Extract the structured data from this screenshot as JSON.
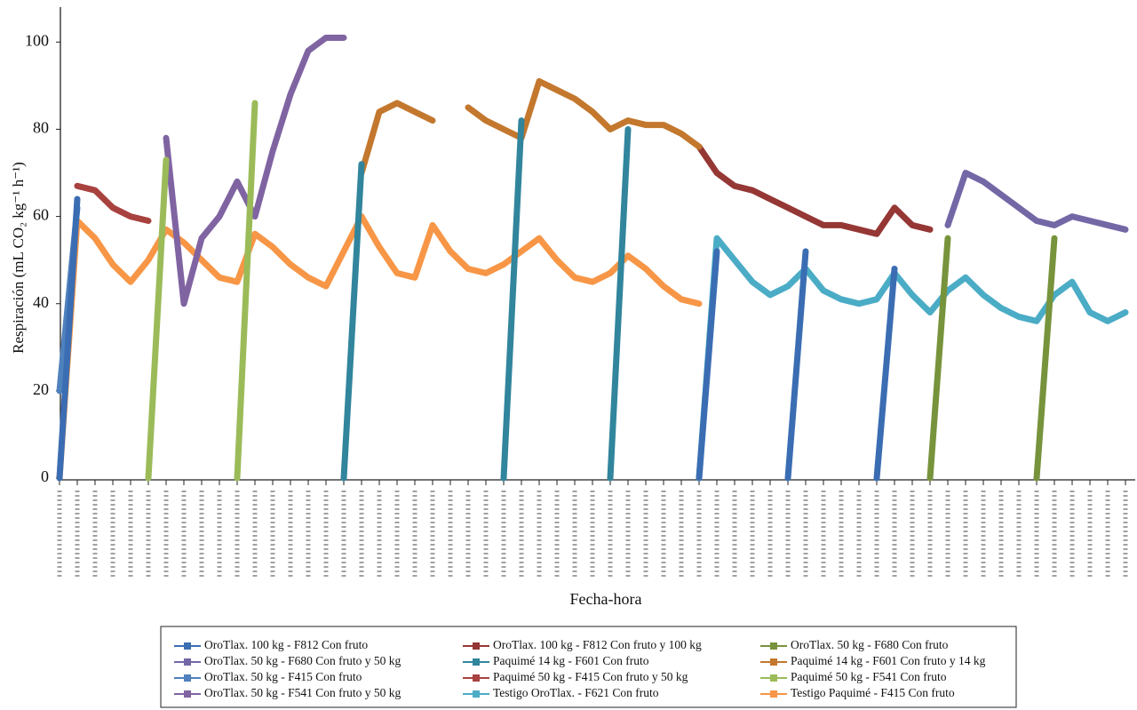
{
  "chart_data": {
    "type": "line",
    "xlabel": "Fecha-hora",
    "ylabel": "Respiración (mL CO₂ kg⁻¹ h⁻¹)",
    "categories": [
      null,
      null,
      null,
      null,
      null,
      null,
      null,
      null,
      null,
      null,
      null,
      null,
      null,
      null,
      null,
      null,
      null,
      null,
      null,
      null,
      null,
      null,
      null,
      null,
      null,
      null,
      null,
      null,
      null,
      null,
      null,
      null,
      null,
      null,
      null,
      null,
      null,
      null,
      null,
      null,
      null,
      null,
      null,
      null,
      null,
      null,
      null,
      null,
      null,
      null,
      null,
      null,
      null,
      null,
      null,
      null,
      null,
      null,
      null,
      null,
      null
    ],
    "ylim": [
      0,
      107
    ],
    "yticks": [
      0,
      20,
      40,
      60,
      80,
      100
    ],
    "series": [
      {
        "name": "OroTlax. 100 kg - F812 Con fruto",
        "color": "#3b6db3",
        "values": [
          0,
          64,
          null,
          null,
          null,
          null,
          null,
          null,
          null,
          null,
          null,
          null,
          null,
          null,
          null,
          null,
          null,
          null,
          null,
          null,
          null,
          null,
          null,
          null,
          null,
          null,
          null,
          null,
          null,
          null,
          null,
          null,
          null,
          null,
          null,
          null,
          0,
          52,
          null,
          null,
          null,
          0,
          52,
          null,
          null,
          null,
          0,
          48,
          null,
          null,
          null,
          null,
          null,
          null,
          null,
          null,
          null,
          null,
          null,
          null,
          null
        ]
      },
      {
        "name": "OroTlax. 100 kg - F812 Con fruto y 100 kg",
        "color": "#953735",
        "values": [
          null,
          null,
          null,
          null,
          null,
          null,
          null,
          null,
          null,
          null,
          null,
          null,
          null,
          null,
          null,
          null,
          null,
          null,
          null,
          null,
          null,
          null,
          null,
          null,
          null,
          null,
          null,
          null,
          null,
          null,
          null,
          null,
          null,
          null,
          null,
          null,
          76,
          70,
          67,
          66,
          64,
          62,
          60,
          58,
          58,
          57,
          56,
          62,
          58,
          57,
          null,
          null,
          null,
          null,
          null,
          null,
          null,
          null,
          null,
          null,
          null
        ]
      },
      {
        "name": "OroTlax. 50 kg - F680 Con fruto",
        "color": "#77933c",
        "values": [
          null,
          null,
          null,
          null,
          null,
          null,
          null,
          null,
          null,
          null,
          null,
          null,
          null,
          null,
          null,
          null,
          null,
          null,
          null,
          null,
          null,
          null,
          null,
          null,
          null,
          null,
          null,
          null,
          null,
          null,
          null,
          null,
          null,
          null,
          null,
          null,
          null,
          null,
          null,
          null,
          null,
          null,
          null,
          null,
          null,
          null,
          null,
          null,
          null,
          0,
          55,
          null,
          null,
          null,
          null,
          0,
          55,
          null,
          null,
          null,
          null
        ]
      },
      {
        "name": "OroTlax. 50 kg - F680 Con fruto y 50 kg",
        "color": "#7467a6",
        "values": [
          null,
          null,
          null,
          null,
          null,
          null,
          null,
          null,
          null,
          null,
          null,
          null,
          null,
          null,
          null,
          null,
          null,
          null,
          null,
          null,
          null,
          null,
          null,
          null,
          null,
          null,
          null,
          null,
          null,
          null,
          null,
          null,
          null,
          null,
          null,
          null,
          null,
          null,
          null,
          null,
          null,
          null,
          null,
          null,
          null,
          null,
          null,
          null,
          null,
          null,
          58,
          70,
          68,
          65,
          62,
          59,
          58,
          60,
          59,
          58,
          57
        ]
      },
      {
        "name": "Paquimé 14 kg - F601 Con fruto",
        "color": "#31859c",
        "values": [
          null,
          null,
          null,
          null,
          null,
          null,
          null,
          null,
          null,
          null,
          null,
          null,
          null,
          null,
          null,
          null,
          0,
          72,
          null,
          null,
          null,
          null,
          null,
          null,
          null,
          0,
          82,
          null,
          null,
          null,
          null,
          0,
          80,
          null,
          null,
          null,
          null,
          null,
          null,
          null,
          null,
          null,
          null,
          null,
          null,
          null,
          null,
          null,
          null,
          null,
          null,
          null,
          null,
          null,
          null,
          null,
          null,
          null,
          null,
          null,
          null
        ]
      },
      {
        "name": "Paquimé 14 kg - F601 Con fruto y 14 kg",
        "color": "#c3782e",
        "values": [
          null,
          null,
          null,
          null,
          null,
          null,
          null,
          null,
          null,
          null,
          null,
          null,
          null,
          null,
          null,
          null,
          null,
          70,
          84,
          86,
          84,
          82,
          null,
          85,
          82,
          80,
          78,
          91,
          89,
          87,
          84,
          80,
          82,
          81,
          81,
          79,
          76,
          null,
          null,
          null,
          null,
          null,
          null,
          null,
          null,
          null,
          null,
          null,
          null,
          null,
          null,
          null,
          null,
          null,
          null,
          null,
          null,
          null,
          null,
          null,
          null
        ]
      },
      {
        "name": "OroTlax. 50 kg - F415 Con fruto",
        "color": "#4f81bd",
        "values": [
          20,
          62,
          null,
          null,
          null,
          null,
          null,
          null,
          null,
          null,
          null,
          null,
          null,
          null,
          null,
          null,
          null,
          null,
          null,
          null,
          null,
          null,
          null,
          null,
          null,
          null,
          null,
          null,
          null,
          null,
          null,
          null,
          null,
          null,
          null,
          null,
          null,
          null,
          null,
          null,
          null,
          null,
          null,
          null,
          null,
          null,
          null,
          null,
          null,
          null,
          null,
          null,
          null,
          null,
          null,
          null,
          null,
          null,
          null,
          null,
          null
        ]
      },
      {
        "name": "Paquimé 50 kg - F415 Con fruto y 50 kg",
        "color": "#a8423f",
        "values": [
          null,
          67,
          66,
          62,
          60,
          59,
          null,
          null,
          null,
          null,
          null,
          null,
          null,
          null,
          null,
          null,
          null,
          null,
          null,
          null,
          null,
          null,
          null,
          null,
          null,
          null,
          null,
          null,
          null,
          null,
          null,
          null,
          null,
          null,
          null,
          null,
          null,
          null,
          null,
          null,
          null,
          null,
          null,
          null,
          null,
          null,
          null,
          null,
          null,
          null,
          null,
          null,
          null,
          null,
          null,
          null,
          null,
          null,
          null,
          null,
          null
        ]
      },
      {
        "name": "Paquimé 50 kg - F541 Con fruto",
        "color": "#9bbb59",
        "values": [
          null,
          null,
          null,
          null,
          null,
          0,
          73,
          null,
          null,
          null,
          0,
          86,
          null,
          null,
          null,
          null,
          null,
          null,
          null,
          null,
          null,
          null,
          null,
          null,
          null,
          null,
          null,
          null,
          null,
          null,
          null,
          null,
          null,
          null,
          null,
          null,
          null,
          null,
          null,
          null,
          null,
          null,
          null,
          null,
          null,
          null,
          null,
          null,
          null,
          null,
          null,
          null,
          null,
          null,
          null,
          null,
          null,
          null,
          null,
          null,
          null
        ]
      },
      {
        "name": "OroTlax. 50 kg - F541 Con fruto y 50 kg",
        "color": "#8064a2",
        "values": [
          null,
          null,
          null,
          null,
          null,
          null,
          78,
          40,
          55,
          60,
          68,
          60,
          75,
          88,
          98,
          101,
          101,
          null,
          null,
          null,
          null,
          null,
          null,
          null,
          null,
          null,
          null,
          null,
          null,
          null,
          null,
          null,
          null,
          null,
          null,
          null,
          null,
          null,
          null,
          null,
          null,
          null,
          null,
          null,
          null,
          null,
          null,
          null,
          null,
          null,
          null,
          null,
          null,
          null,
          null,
          null,
          null,
          null,
          null,
          null,
          null
        ]
      },
      {
        "name": "Testigo OroTlax. - F621 Con fruto",
        "color": "#4bacc6",
        "values": [
          null,
          null,
          null,
          null,
          null,
          null,
          null,
          null,
          null,
          null,
          null,
          null,
          null,
          null,
          null,
          null,
          null,
          null,
          null,
          null,
          null,
          null,
          null,
          null,
          null,
          null,
          null,
          null,
          null,
          null,
          null,
          null,
          null,
          null,
          null,
          null,
          0,
          55,
          50,
          45,
          42,
          44,
          48,
          43,
          41,
          40,
          41,
          47,
          42,
          38,
          43,
          46,
          42,
          39,
          37,
          36,
          42,
          45,
          38,
          36,
          38
        ]
      },
      {
        "name": "Testigo Paquimé - F415 Con fruto",
        "color": "#f79646",
        "values": [
          0,
          59,
          55,
          49,
          45,
          50,
          57,
          54,
          50,
          46,
          45,
          56,
          53,
          49,
          46,
          44,
          52,
          60,
          53,
          47,
          46,
          58,
          52,
          48,
          47,
          49,
          52,
          55,
          50,
          46,
          45,
          47,
          51,
          48,
          44,
          41,
          40,
          null,
          null,
          null,
          null,
          null,
          null,
          null,
          null,
          null,
          null,
          null,
          null,
          null,
          null,
          null,
          null,
          null,
          null,
          null,
          null,
          null,
          null,
          null,
          null
        ]
      }
    ]
  }
}
